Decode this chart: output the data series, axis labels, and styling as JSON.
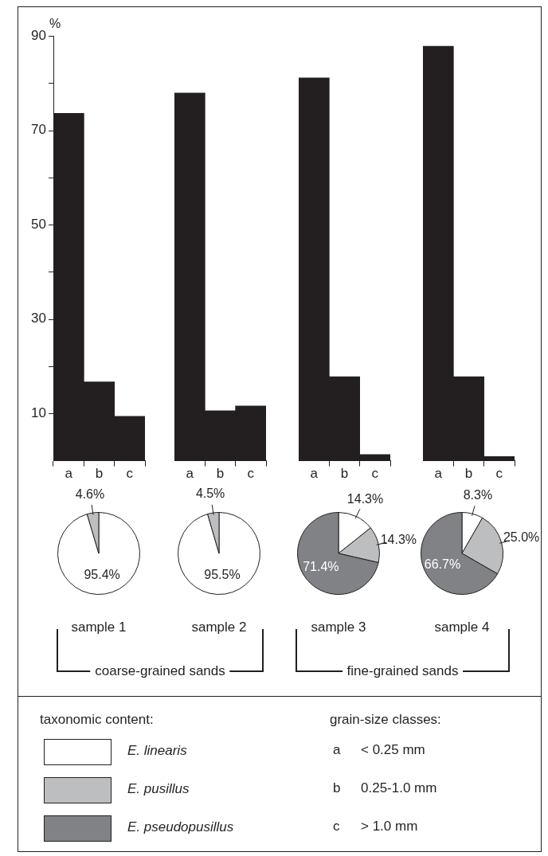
{
  "chart_data": [
    {
      "type": "bar",
      "categories": [
        "a",
        "b",
        "c"
      ],
      "values": [
        73.6,
        16.7,
        9.4
      ],
      "color": "#231f20",
      "ylabel": "%",
      "ylim": [
        0,
        90
      ],
      "yticks": [
        10,
        {
          "value": 20,
          "label": null
        },
        30,
        {
          "value": 40,
          "label": null
        },
        50,
        {
          "value": 60,
          "label": null
        },
        70,
        {
          "value": 80,
          "label": null
        },
        90
      ]
    },
    {
      "type": "bar",
      "categories": [
        "a",
        "b",
        "c"
      ],
      "values": [
        77.9,
        10.6,
        11.6
      ],
      "color": "#231f20",
      "ylim": [
        0,
        90
      ],
      "tick_labels": "x"
    },
    {
      "type": "bar",
      "categories": [
        "a",
        "b",
        "c"
      ],
      "values": [
        81.1,
        17.8,
        1.3
      ],
      "color": "#231f20",
      "ylim": [
        0,
        90
      ],
      "tick_labels": "x"
    },
    {
      "type": "bar",
      "categories": [
        "a",
        "b",
        "c"
      ],
      "values": [
        87.8,
        17.8,
        0.9
      ],
      "color": "#231f20",
      "ylim": [
        0,
        90
      ],
      "tick_labels": "x"
    },
    {
      "type": "pie",
      "title": "sample 1",
      "categories": [
        null,
        null
      ],
      "values": [
        95.4,
        4.6
      ],
      "value_labels": [
        "95.4%",
        "4.6%"
      ],
      "colors": [
        "#ffffff",
        "#bcbec0"
      ]
    },
    {
      "type": "pie",
      "title": "sample 2",
      "categories": [
        null,
        null
      ],
      "values": [
        95.5,
        4.5
      ],
      "value_labels": [
        "95.5%",
        "4.5%"
      ],
      "colors": [
        "#ffffff",
        "#bcbec0"
      ]
    },
    {
      "type": "pie",
      "title": "sample 3",
      "categories": [
        null,
        null,
        null
      ],
      "values": [
        14.3,
        14.3,
        71.4
      ],
      "value_labels": [
        "14.3%",
        "14.3%",
        "71.4%"
      ],
      "colors": [
        "#ffffff",
        "#bcbec0",
        "#808285"
      ]
    },
    {
      "type": "pie",
      "title": "sample 4",
      "categories": [
        "E. linearis",
        "E. pusillus",
        "E. pseudopusillus"
      ],
      "values": [
        8.3,
        25.0,
        66.7
      ],
      "value_labels": [
        "8.3%",
        "25.0%",
        "66.7%"
      ],
      "colors": [
        "#ffffff",
        "#bcbec0",
        "#808285"
      ],
      "legend": "bottom",
      "legend_title": "taxonomic content:"
    },
    {
      "type": "other",
      "annotations": [
        "coarse-grained sands",
        "fine-grained sands",
        "grain-size classes:",
        "a",
        "< 0.25 mm",
        "b",
        "0.25-1.0 mm",
        "c",
        "> 1.0 mm"
      ]
    }
  ]
}
